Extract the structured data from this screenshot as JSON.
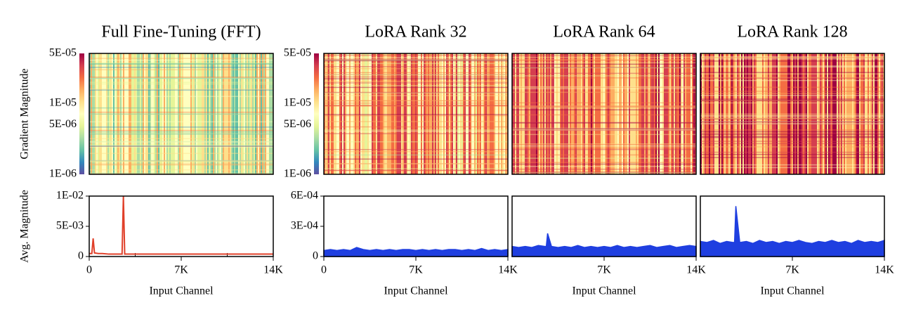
{
  "heatmaps": {
    "ylabel": "Gradient Magnitude",
    "log": true,
    "panels": [
      {
        "title": "Full Fine-Tuning (FFT)",
        "colorbar": {
          "lim": [
            1e-06,
            5e-05
          ],
          "ticks": [
            {
              "value": 5e-05,
              "label": "5E-05"
            },
            {
              "value": 1e-05,
              "label": "1E-05"
            },
            {
              "value": 5e-06,
              "label": "5E-06"
            },
            {
              "value": 1e-06,
              "label": "1E-06"
            }
          ]
        }
      },
      {
        "title": "LoRA Rank 32",
        "colorbar": {
          "lim": [
            1e-06,
            5e-05
          ],
          "ticks": [
            {
              "value": 5e-05,
              "label": "5E-05"
            },
            {
              "value": 1e-05,
              "label": "1E-05"
            },
            {
              "value": 5e-06,
              "label": "5E-06"
            },
            {
              "value": 1e-06,
              "label": "1E-06"
            }
          ]
        }
      },
      {
        "title": "LoRA Rank 64"
      },
      {
        "title": "LoRA Rank 128"
      }
    ]
  },
  "chart_data": [
    {
      "type": "line",
      "ylabel": "Avg. Magnitude",
      "xlabel": "Input Channel",
      "x": [
        0,
        200,
        300,
        400,
        700,
        1000,
        1500,
        2000,
        2500,
        2600,
        2700,
        3500,
        5000,
        7000,
        9000,
        10500,
        12000,
        14000
      ],
      "series": [
        {
          "color": "#e0402a",
          "fill": false,
          "values": [
            0.0005,
            0.0005,
            0.003,
            0.0006,
            0.0005,
            0.0005,
            0.0004,
            0.0004,
            0.0004,
            0.01,
            0.0004,
            0.0004,
            0.0004,
            0.0004,
            0.0004,
            0.0004,
            0.0004,
            0.0004
          ]
        }
      ],
      "xlim": [
        0,
        14000
      ],
      "xticks": [
        0,
        {
          "value": 7000,
          "label": "7K"
        },
        {
          "value": 14000,
          "label": "14K"
        }
      ],
      "minor_xticks": [
        3500,
        10500
      ],
      "ylim": [
        0,
        0.01
      ],
      "yticks": [
        0,
        {
          "value": 0.005,
          "label": "5E-03"
        },
        {
          "value": 0.01,
          "label": "1E-02"
        }
      ]
    },
    {
      "type": "line",
      "xlabel": "Input Channel",
      "x": [
        0,
        500,
        1000,
        1500,
        2000,
        2500,
        3000,
        3500,
        4000,
        4500,
        5000,
        5500,
        6000,
        6500,
        7000,
        7500,
        8000,
        8500,
        9000,
        9500,
        10000,
        10500,
        11000,
        11500,
        12000,
        12500,
        13000,
        13500,
        14000
      ],
      "series": [
        {
          "color": "#1f3fe0",
          "fill": true,
          "values": [
            6e-05,
            7e-05,
            6e-05,
            7e-05,
            6e-05,
            9e-05,
            7e-05,
            6e-05,
            7e-05,
            6e-05,
            7e-05,
            6e-05,
            7e-05,
            7e-05,
            6e-05,
            7e-05,
            6e-05,
            7e-05,
            6e-05,
            7e-05,
            7e-05,
            6e-05,
            7e-05,
            6e-05,
            8e-05,
            6e-05,
            7e-05,
            6e-05,
            7e-05
          ]
        }
      ],
      "xlim": [
        0,
        14000
      ],
      "xticks": [
        0,
        {
          "value": 7000,
          "label": "7K"
        },
        {
          "value": 14000,
          "label": "14K"
        }
      ],
      "minor_xticks": [
        3500,
        10500
      ],
      "ylim": [
        0,
        0.0006
      ],
      "yticks": [
        0,
        {
          "value": 0.0003,
          "label": "3E-04"
        },
        {
          "value": 0.0006,
          "label": "6E-04"
        }
      ]
    },
    {
      "type": "line",
      "xlabel": "Input Channel",
      "x": [
        0,
        500,
        1000,
        1500,
        2000,
        2500,
        2600,
        2700,
        3000,
        3500,
        4000,
        4500,
        5000,
        5500,
        6000,
        6500,
        7000,
        7500,
        8000,
        8500,
        9000,
        9500,
        10000,
        10500,
        11000,
        11500,
        12000,
        12500,
        13000,
        13500,
        14000
      ],
      "series": [
        {
          "color": "#1f3fe0",
          "fill": true,
          "values": [
            0.0001,
            9e-05,
            0.0001,
            9e-05,
            0.00011,
            0.0001,
            0.0001,
            0.00023,
            0.0001,
            9e-05,
            0.0001,
            9e-05,
            0.00011,
            9e-05,
            0.0001,
            9e-05,
            0.0001,
            9e-05,
            0.00011,
            9e-05,
            0.0001,
            9e-05,
            0.0001,
            0.00011,
            9e-05,
            0.0001,
            0.00011,
            9e-05,
            0.0001,
            0.00011,
            0.0001
          ]
        }
      ],
      "xlim": [
        0,
        14000
      ],
      "xticks": [
        {
          "value": 7000,
          "label": "7K"
        },
        {
          "value": 14000,
          "label": "14K"
        }
      ],
      "minor_xticks": [
        3500,
        10500
      ],
      "ylim": [
        0,
        0.0006
      ]
    },
    {
      "type": "line",
      "xlabel": "Input Channel",
      "x": [
        0,
        500,
        1000,
        1500,
        2000,
        2500,
        2600,
        2700,
        3000,
        3500,
        4000,
        4500,
        5000,
        5500,
        6000,
        6500,
        7000,
        7500,
        8000,
        8500,
        9000,
        9500,
        10000,
        10500,
        11000,
        11500,
        12000,
        12500,
        13000,
        13500,
        14000
      ],
      "series": [
        {
          "color": "#1f3fe0",
          "fill": true,
          "values": [
            0.00015,
            0.00014,
            0.00016,
            0.00013,
            0.00015,
            0.00014,
            0.00014,
            0.0005,
            0.00014,
            0.00015,
            0.00013,
            0.00016,
            0.00014,
            0.00015,
            0.00013,
            0.00015,
            0.00014,
            0.00016,
            0.00014,
            0.00013,
            0.00015,
            0.00014,
            0.00016,
            0.00014,
            0.00015,
            0.00013,
            0.00016,
            0.00014,
            0.00015,
            0.00014,
            0.00016
          ]
        }
      ],
      "xlim": [
        0,
        14000
      ],
      "xticks": [
        {
          "value": 7000,
          "label": "7K"
        },
        {
          "value": 14000,
          "label": "14K"
        }
      ],
      "minor_xticks": [
        3500,
        10500
      ],
      "ylim": [
        0,
        0.0006
      ]
    }
  ]
}
